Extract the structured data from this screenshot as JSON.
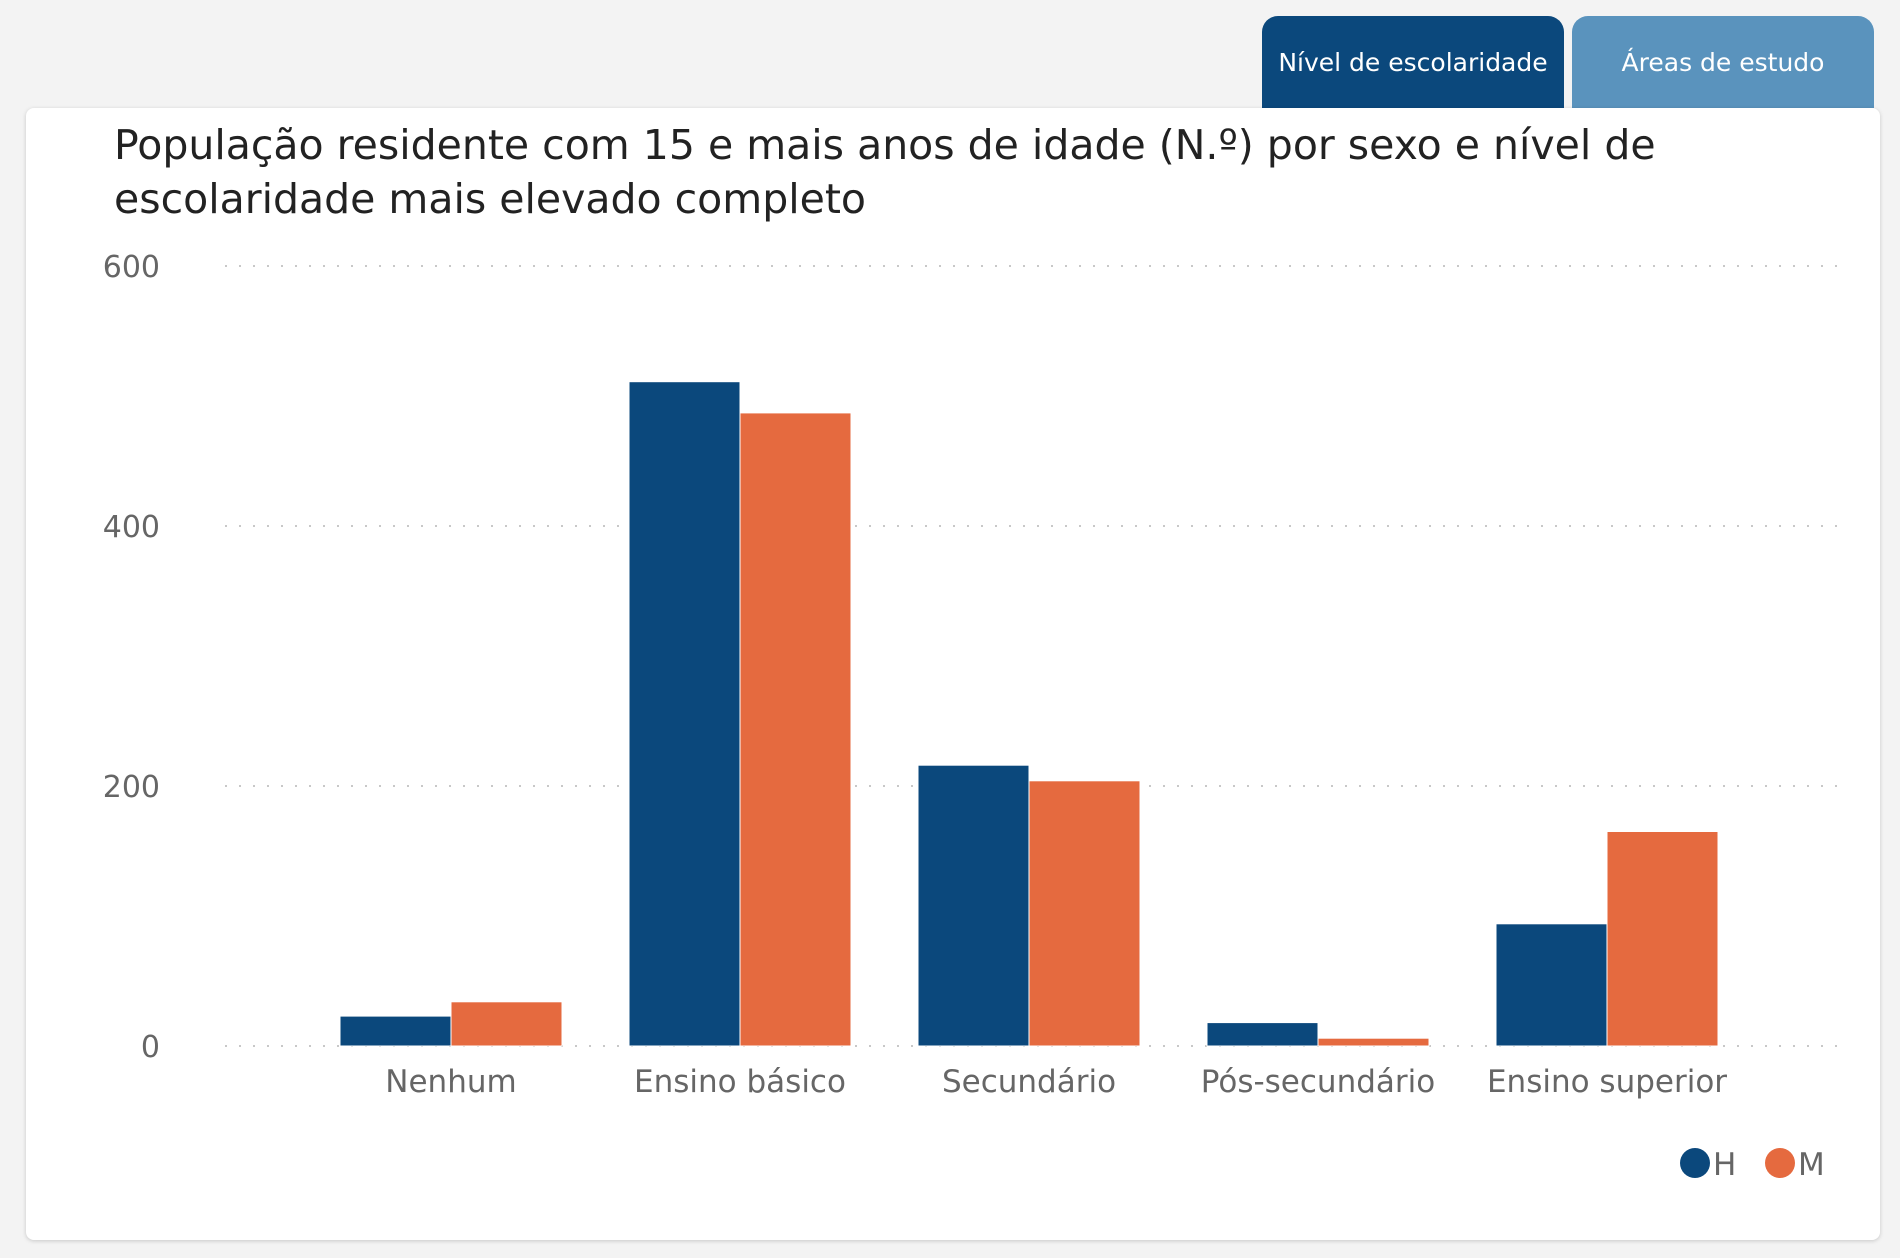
{
  "tabs": [
    {
      "label": "Nível de escolaridade",
      "active": true
    },
    {
      "label": "Áreas de estudo",
      "active": false
    }
  ],
  "chart_data": {
    "type": "bar",
    "title": "População residente com 15 e mais anos de idade (N.º) por sexo e nível de escolaridade mais elevado completo",
    "categories": [
      "Nenhum",
      "Ensino básico",
      "Secundário",
      "Pós-secundário",
      "Ensino superior"
    ],
    "series": [
      {
        "name": "H",
        "color": "#0b487c",
        "values": [
          23,
          511,
          216,
          18,
          94
        ]
      },
      {
        "name": "M",
        "color": "#e56a3f",
        "values": [
          34,
          487,
          204,
          6,
          165
        ]
      }
    ],
    "yticks": [
      0,
      200,
      400,
      600
    ],
    "ylim": [
      0,
      600
    ],
    "xlabel": "",
    "ylabel": "",
    "grid": true,
    "legend": "bottom-right"
  }
}
